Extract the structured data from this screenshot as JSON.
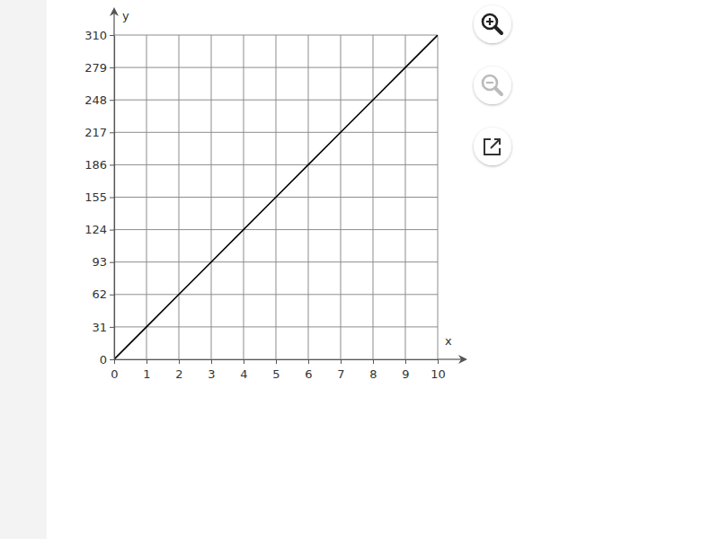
{
  "chart_data": {
    "type": "line",
    "x_label": "x",
    "y_label": "y",
    "x": [
      0,
      1,
      2,
      3,
      4,
      5,
      6,
      7,
      8,
      9,
      10
    ],
    "values": [
      0,
      31,
      62,
      93,
      124,
      155,
      186,
      217,
      248,
      279,
      310
    ],
    "color": "#000000",
    "xlim": [
      0,
      10
    ],
    "xticks": [
      0,
      1,
      2,
      3,
      4,
      5,
      6,
      7,
      8,
      9,
      10
    ],
    "ylim": [
      0,
      310
    ],
    "yticks": [
      0,
      31,
      62,
      93,
      124,
      155,
      186,
      217,
      248,
      279,
      310
    ],
    "grid": true
  }
}
